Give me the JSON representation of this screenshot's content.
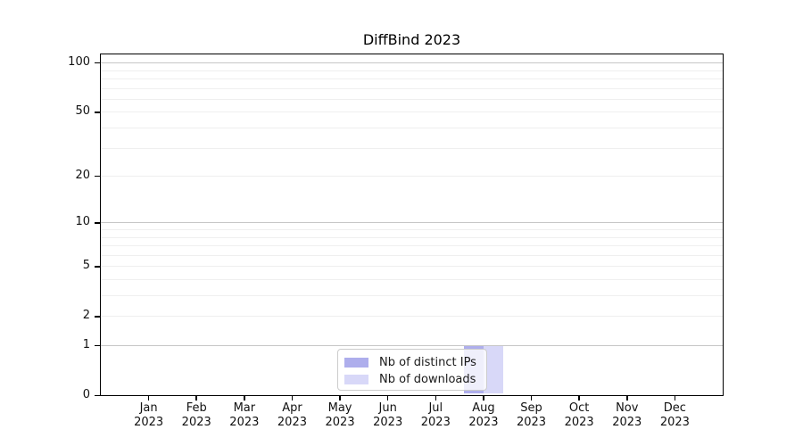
{
  "chart_data": {
    "type": "bar",
    "title": "DiffBind 2023",
    "categories": [
      "Jan",
      "Feb",
      "Mar",
      "Apr",
      "May",
      "Jun",
      "Jul",
      "Aug",
      "Sep",
      "Oct",
      "Nov",
      "Dec"
    ],
    "year_label": "2023",
    "series": [
      {
        "name": "Nb of distinct IPs",
        "color": "#aeaeec",
        "values": [
          0,
          0,
          0,
          0,
          0,
          0,
          0,
          1,
          0,
          0,
          0,
          0
        ]
      },
      {
        "name": "Nb of downloads",
        "color": "#d8d8f8",
        "values": [
          0,
          0,
          0,
          0,
          0,
          0,
          0,
          1,
          0,
          0,
          0,
          0
        ]
      }
    ],
    "y_axis": {
      "scale": "log10(1+y)",
      "tick_values": [
        0,
        1,
        2,
        5,
        10,
        20,
        50,
        100
      ],
      "major_grid_values": [
        1,
        10,
        100
      ],
      "minor_grid_values": [
        2,
        3,
        4,
        5,
        6,
        7,
        8,
        9,
        20,
        30,
        40,
        50,
        60,
        70,
        80,
        90
      ],
      "ylim_top": 115
    },
    "legend": {
      "position": "lower center"
    },
    "colors": {
      "axis": "#000000",
      "major_grid": "#c6c6c6",
      "minor_grid": "#efefef",
      "text": "#111111",
      "legend_border": "#cccccc",
      "background": "#ffffff"
    }
  }
}
